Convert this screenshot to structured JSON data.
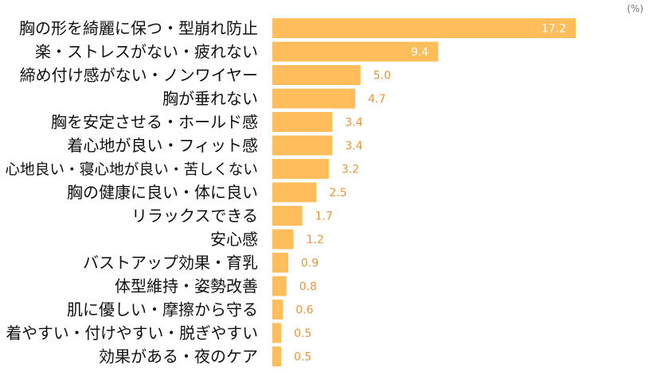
{
  "chart_data": {
    "type": "bar",
    "orientation": "horizontal",
    "unit": "(%)",
    "categories": [
      "胸の形を綺麗に保つ・型崩れ防止",
      "楽・ストレスがない・疲れない",
      "締め付け感がない・ノンワイヤー",
      "胸が垂れない",
      "胸を安定させる・ホールド感",
      "着心地が良い・フィット感",
      "心地良い・寝心地が良い・苦しくない",
      "胸の健康に良い・体に良い",
      "リラックスできる",
      "安心感",
      "バストアップ効果・育乳",
      "体型維持・姿勢改善",
      "肌に優しい・摩擦から守る",
      "着やすい・付けやすい・脱ぎやすい",
      "効果がある・夜のケア"
    ],
    "values": [
      17.2,
      9.4,
      5.0,
      4.7,
      3.4,
      3.4,
      3.2,
      2.5,
      1.7,
      1.2,
      0.9,
      0.8,
      0.6,
      0.5,
      0.5
    ],
    "value_labels": [
      "17.2",
      "9.4",
      "5.0",
      "4.7",
      "3.4",
      "3.4",
      "3.2",
      "2.5",
      "1.7",
      "1.2",
      "0.9",
      "0.8",
      "0.6",
      "0.5",
      "0.5"
    ],
    "xlim": [
      0,
      17.2
    ],
    "colors": {
      "bar": "#FFBD5C",
      "value_text": "#E8963C",
      "value_text_inside": "#ffffff"
    }
  }
}
